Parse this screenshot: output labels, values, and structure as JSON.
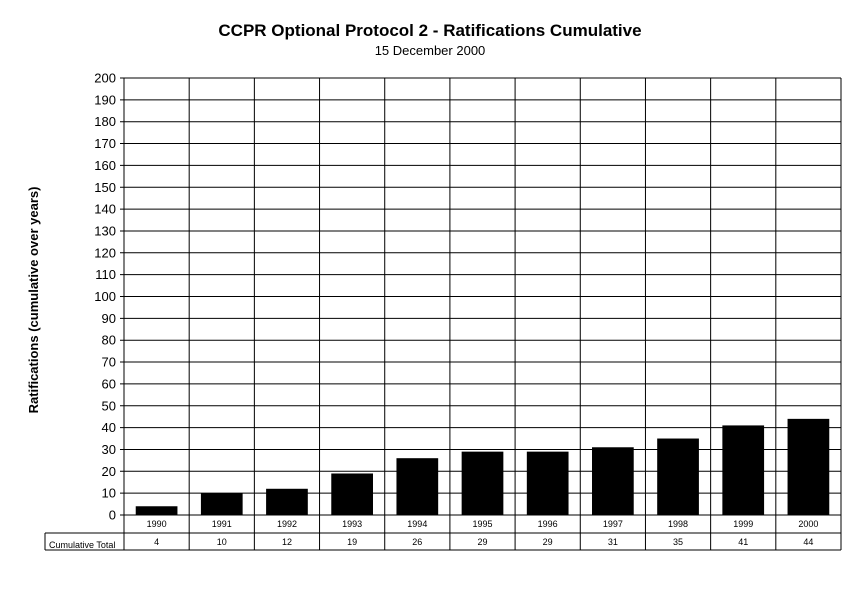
{
  "chart_data": {
    "type": "bar",
    "title": "CCPR Optional Protocol 2 - Ratifications Cumulative",
    "subtitle": "15 December 2000",
    "ylabel": "Ratifications (cumulative over years)",
    "xlabel": "",
    "ylim": [
      0,
      200
    ],
    "ystep": 10,
    "grid": true,
    "legend": "none",
    "bar_color": "#000000",
    "categories": [
      "1990",
      "1991",
      "1992",
      "1993",
      "1994",
      "1995",
      "1996",
      "1997",
      "1998",
      "1999",
      "2000"
    ],
    "series": [
      {
        "values": [
          4,
          10,
          12,
          19,
          26,
          29,
          29,
          31,
          35,
          41,
          44
        ]
      }
    ],
    "table": {
      "row_label": "Cumulative Total",
      "values": [
        "4",
        "10",
        "12",
        "19",
        "26",
        "29",
        "29",
        "31",
        "35",
        "41",
        "44"
      ]
    }
  }
}
